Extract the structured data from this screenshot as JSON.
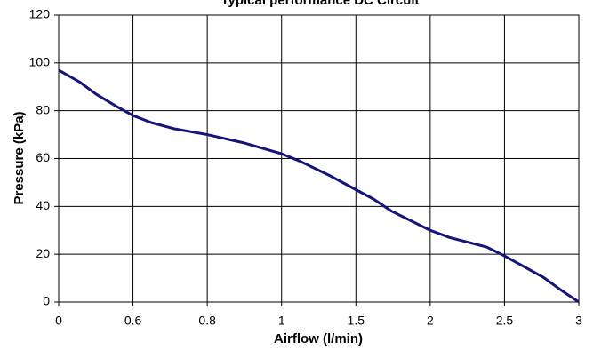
{
  "chart_data": {
    "type": "line",
    "title": "Typical performance DC Circuit",
    "x_label": "Airflow (l/min)",
    "y_label": "Pressure (kPa)",
    "x": [
      0,
      0.17,
      0.3,
      0.46,
      0.6,
      0.65,
      0.71,
      0.8,
      0.9,
      1,
      1.12,
      1.32,
      1.5,
      1.62,
      1.74,
      2,
      2.13,
      2.38,
      2.5,
      2.76,
      2.88,
      3
    ],
    "series": [
      {
        "name": "Pressure",
        "color": "#14147a",
        "values": [
          97,
          92,
          87,
          82,
          78,
          75,
          72.5,
          70,
          66.5,
          62,
          59,
          53,
          47,
          43,
          38,
          30,
          27,
          23,
          19.3,
          10.4,
          5,
          0
        ]
      }
    ],
    "xlim": [
      0,
      3
    ],
    "xticks": [
      0,
      0.6,
      0.8,
      1,
      1.5,
      2,
      2.5,
      3
    ],
    "ylim": [
      0,
      120
    ],
    "yticks": [
      0,
      20,
      40,
      60,
      80,
      100,
      120
    ],
    "grid": true
  }
}
